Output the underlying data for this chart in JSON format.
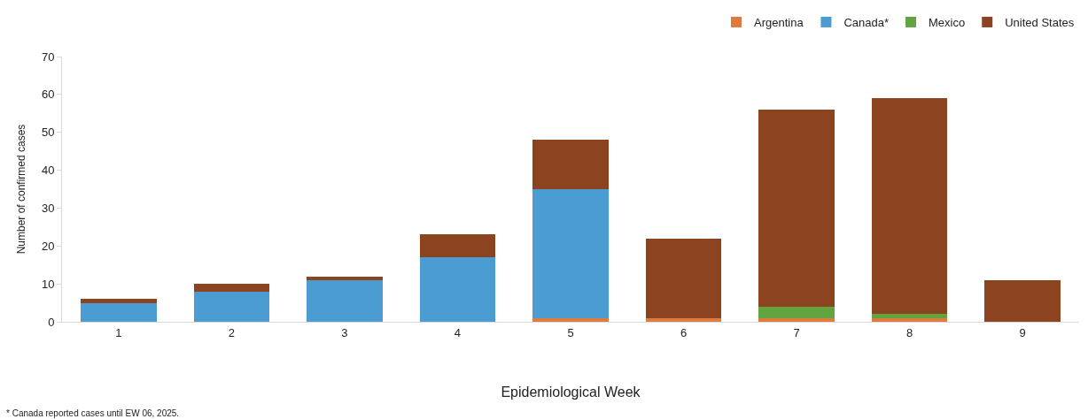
{
  "chart_data": {
    "type": "bar",
    "stacked": true,
    "xlabel": "Epidemiological Week",
    "ylabel": "Number of confirmed cases",
    "categories": [
      "1",
      "2",
      "3",
      "4",
      "5",
      "6",
      "7",
      "8",
      "9"
    ],
    "series": [
      {
        "name": "Argentina",
        "color": "#e07b3f",
        "values": [
          0,
          0,
          0,
          0,
          1,
          1,
          1,
          1,
          0
        ]
      },
      {
        "name": "Canada*",
        "color": "#4a9cd2",
        "values": [
          5,
          8,
          11,
          17,
          34,
          0,
          0,
          0,
          0
        ]
      },
      {
        "name": "Mexico",
        "color": "#62a540",
        "values": [
          0,
          0,
          0,
          0,
          0,
          0,
          3,
          1,
          0
        ]
      },
      {
        "name": "United States",
        "color": "#8b4320",
        "values": [
          1,
          2,
          1,
          6,
          13,
          21,
          52,
          57,
          11
        ]
      }
    ],
    "ylim": [
      0,
      70
    ],
    "yticks": [
      0,
      10,
      20,
      30,
      40,
      50,
      60,
      70
    ],
    "grid": false,
    "legend": "top right",
    "annotations": [
      "* Canada reported cases until EW 06, 2025."
    ]
  }
}
